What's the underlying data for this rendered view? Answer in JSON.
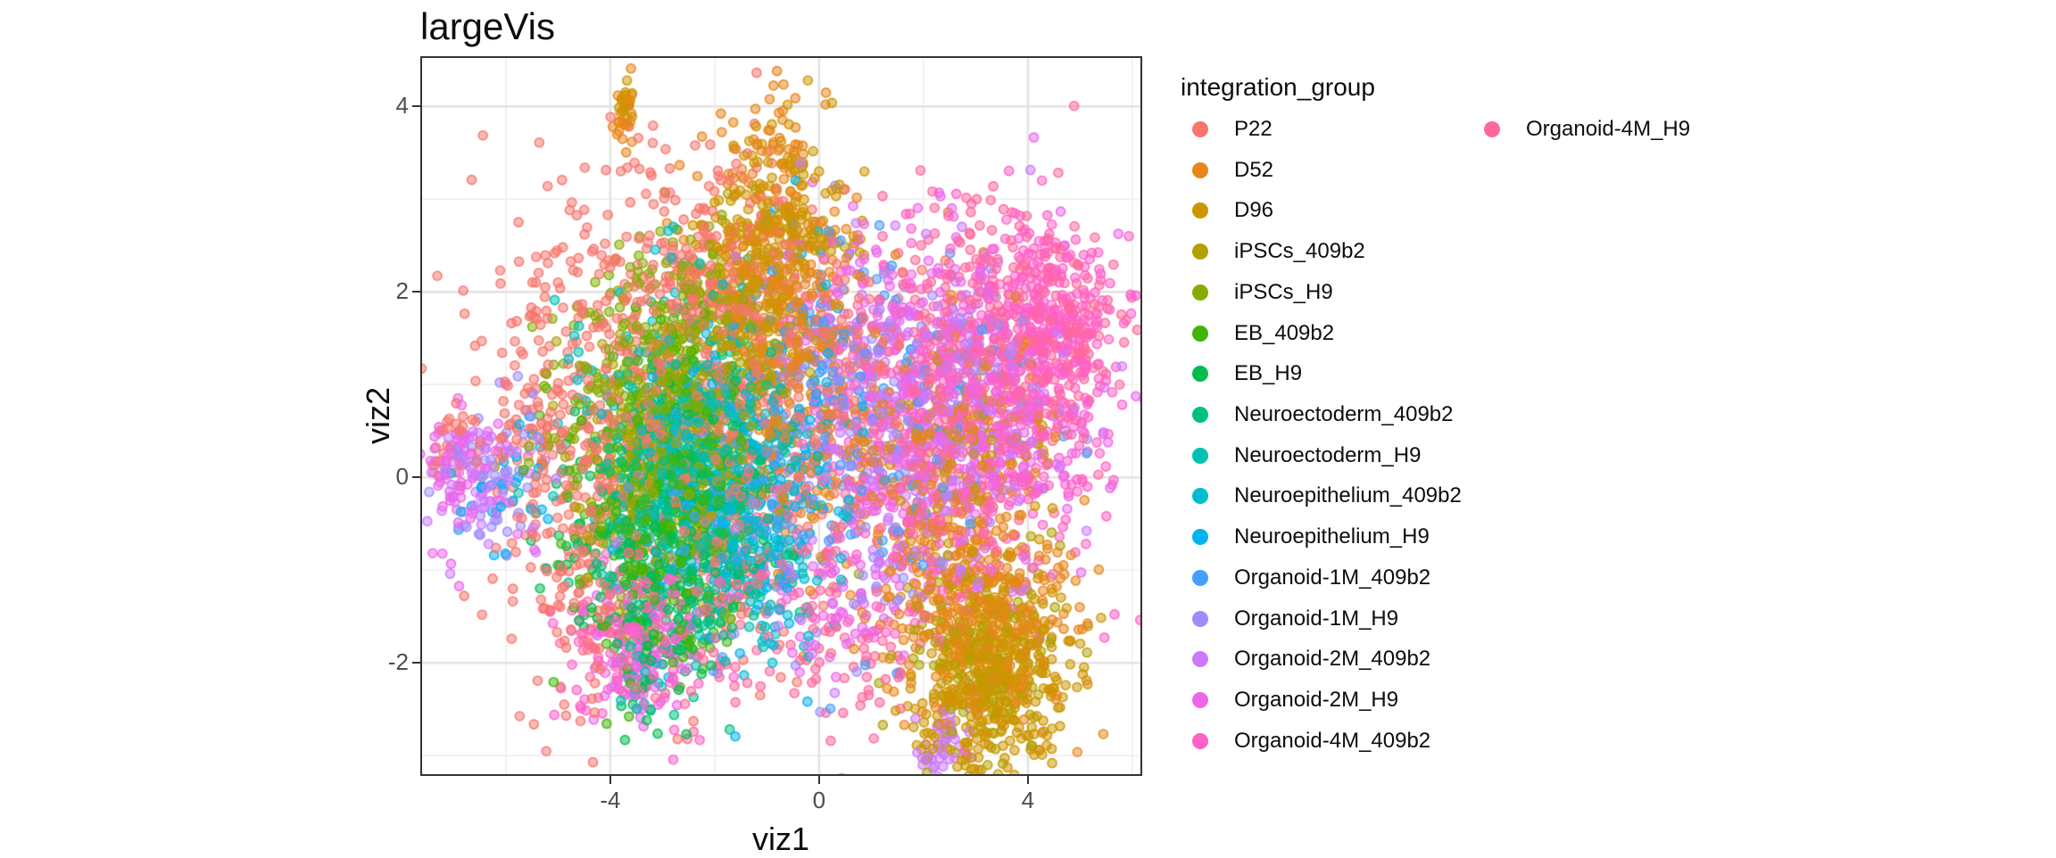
{
  "plot": {
    "title": "largeVis",
    "xlabel": "viz1",
    "ylabel": "viz2"
  },
  "legend": {
    "title": "integration_group",
    "rows_per_column": 16,
    "position": "right"
  },
  "style": {
    "background": "#ffffff",
    "panel_background": "#ffffff",
    "panel_border": "#343434",
    "grid_major": "#e3e3e3",
    "grid_minor": "#f0f0f0",
    "tick_label_color": "#4d4d4d",
    "text_color": "#0d0d0d"
  },
  "chart_data": {
    "type": "scatter",
    "title": "largeVis",
    "xlabel": "viz1",
    "ylabel": "viz2",
    "xlim": [
      -7.64,
      6.19
    ],
    "ylim": [
      -3.22,
      4.54
    ],
    "x_major_ticks": [
      -4,
      0,
      4
    ],
    "x_minor_ticks": [
      -6,
      -2,
      2,
      6
    ],
    "y_major_ticks": [
      4,
      2,
      0,
      -2
    ],
    "y_minor_ticks": [
      3,
      1,
      -1,
      -3
    ],
    "grid": true,
    "legend_position": "right",
    "point_radius_px": 5,
    "point_fill_alpha": 0.5,
    "point_stroke_alpha": 0.9,
    "series": [
      {
        "name": "P22",
        "color": "#F8766D",
        "clusters": [
          [
            -3.2,
            1.5,
            1.5,
            1.0,
            420
          ],
          [
            -1.2,
            0.4,
            1.0,
            1.2,
            220
          ],
          [
            -4.9,
            0.2,
            0.9,
            0.8,
            150
          ],
          [
            -4.2,
            -1.2,
            0.8,
            0.7,
            110
          ],
          [
            -7.0,
            0.35,
            0.35,
            0.25,
            28
          ],
          [
            -1.8,
            2.6,
            0.8,
            0.5,
            90
          ],
          [
            0.9,
            1.2,
            0.7,
            0.6,
            60
          ]
        ]
      },
      {
        "name": "D52",
        "color": "#E7861B",
        "clusters": [
          [
            -0.9,
            1.9,
            0.8,
            0.9,
            260
          ],
          [
            3.2,
            -1.6,
            0.85,
            0.6,
            340
          ],
          [
            -0.3,
            0.5,
            0.9,
            0.9,
            130
          ],
          [
            -3.76,
            3.9,
            0.1,
            0.2,
            24
          ],
          [
            -0.7,
            3.6,
            0.3,
            0.3,
            28
          ],
          [
            2.6,
            0.3,
            1.0,
            0.8,
            130
          ],
          [
            2.4,
            -0.6,
            0.6,
            0.5,
            70
          ]
        ]
      },
      {
        "name": "D96",
        "color": "#CD9600",
        "clusters": [
          [
            -0.7,
            2.7,
            0.65,
            0.55,
            220
          ],
          [
            3.5,
            -2.1,
            0.7,
            0.5,
            300
          ],
          [
            -3.7,
            4.05,
            0.08,
            0.15,
            16
          ],
          [
            2.7,
            -2.7,
            0.5,
            0.3,
            60
          ],
          [
            -1.3,
            2.0,
            0.5,
            0.5,
            70
          ],
          [
            2.8,
            0.2,
            0.9,
            0.7,
            90
          ]
        ]
      },
      {
        "name": "iPSCs_409b2",
        "color": "#B0A100",
        "clusters": [
          [
            -3.0,
            0.3,
            0.9,
            0.8,
            200
          ],
          [
            3.1,
            -2.0,
            0.8,
            0.6,
            160
          ],
          [
            -1.4,
            1.6,
            0.6,
            0.7,
            70
          ]
        ]
      },
      {
        "name": "iPSCs_H9",
        "color": "#85AD00",
        "clusters": [
          [
            -3.3,
            0.7,
            0.9,
            0.8,
            250
          ],
          [
            -2.5,
            1.7,
            0.6,
            0.5,
            80
          ]
        ]
      },
      {
        "name": "EB_409b2",
        "color": "#3FB607",
        "clusters": [
          [
            -3.1,
            -0.5,
            0.9,
            0.8,
            250
          ],
          [
            -2.4,
            0.5,
            0.6,
            0.6,
            100
          ]
        ]
      },
      {
        "name": "EB_H9",
        "color": "#00BC51",
        "clusters": [
          [
            -3.3,
            -1.0,
            0.8,
            0.7,
            220
          ],
          [
            -2.1,
            -0.2,
            0.7,
            0.6,
            100
          ]
        ]
      },
      {
        "name": "Neuroectoderm_409b2",
        "color": "#00C087",
        "clusters": [
          [
            -2.7,
            -0.4,
            0.9,
            0.8,
            190
          ],
          [
            -1.6,
            0.5,
            0.8,
            0.7,
            90
          ]
        ]
      },
      {
        "name": "Neuroectoderm_H9",
        "color": "#00C0B2",
        "clusters": [
          [
            -2.9,
            0.4,
            1.0,
            0.8,
            160
          ],
          [
            -1.7,
            -0.7,
            0.7,
            0.6,
            80
          ],
          [
            -3.5,
            -2.2,
            0.3,
            0.25,
            22
          ]
        ]
      },
      {
        "name": "Neuroepithelium_409b2",
        "color": "#00BCD0",
        "clusters": [
          [
            -2.2,
            0.3,
            1.0,
            0.9,
            150
          ],
          [
            -0.9,
            -0.7,
            0.7,
            0.6,
            70
          ]
        ]
      },
      {
        "name": "Neuroepithelium_H9",
        "color": "#00B3F2",
        "clusters": [
          [
            -1.8,
            -0.2,
            1.0,
            0.9,
            140
          ],
          [
            -0.5,
            0.9,
            0.7,
            0.7,
            70
          ],
          [
            -6.0,
            -0.2,
            0.5,
            0.4,
            28
          ]
        ]
      },
      {
        "name": "Organoid-1M_409b2",
        "color": "#459FFF",
        "clusters": [
          [
            -1.1,
            0.1,
            1.1,
            1.0,
            140
          ],
          [
            0.4,
            1.2,
            0.8,
            0.7,
            60
          ],
          [
            2.4,
            0.4,
            0.9,
            0.8,
            50
          ]
        ]
      },
      {
        "name": "Organoid-1M_H9",
        "color": "#9C8DFF",
        "clusters": [
          [
            0.4,
            0.1,
            1.1,
            1.0,
            140
          ],
          [
            2.2,
            0.9,
            1.0,
            0.8,
            90
          ],
          [
            -6.2,
            0.15,
            0.5,
            0.35,
            45
          ]
        ]
      },
      {
        "name": "Organoid-2M_409b2",
        "color": "#CC79FF",
        "clusters": [
          [
            1.6,
            0.4,
            1.1,
            1.0,
            170
          ],
          [
            -6.4,
            0.0,
            0.55,
            0.4,
            60
          ],
          [
            2.35,
            -2.85,
            0.3,
            0.2,
            40
          ],
          [
            3.1,
            0.9,
            1.0,
            0.8,
            90
          ]
        ]
      },
      {
        "name": "Organoid-2M_H9",
        "color": "#EC67E9",
        "clusters": [
          [
            2.8,
            0.7,
            1.2,
            1.0,
            270
          ],
          [
            -6.6,
            -0.05,
            0.5,
            0.4,
            55
          ],
          [
            0.2,
            -1.4,
            0.9,
            0.5,
            60
          ],
          [
            1.2,
            1.8,
            0.7,
            0.5,
            70
          ],
          [
            -3.5,
            -1.9,
            0.6,
            0.4,
            70
          ],
          [
            -7.0,
            0.3,
            0.3,
            0.25,
            25
          ]
        ]
      },
      {
        "name": "Organoid-4M_409b2",
        "color": "#FF61C8",
        "clusters": [
          [
            3.8,
            0.9,
            1.1,
            0.9,
            400
          ],
          [
            4.7,
            1.8,
            0.6,
            0.4,
            140
          ],
          [
            2.1,
            -0.4,
            0.9,
            0.8,
            110
          ],
          [
            1.0,
            0.9,
            0.8,
            0.8,
            90
          ],
          [
            -3.4,
            -1.7,
            0.7,
            0.5,
            110
          ]
        ]
      },
      {
        "name": "Organoid-4M_H9",
        "color": "#FF689D",
        "clusters": [
          [
            3.3,
            1.5,
            1.1,
            0.8,
            300
          ],
          [
            -3.0,
            -1.6,
            0.9,
            0.5,
            90
          ],
          [
            0.8,
            -1.9,
            0.7,
            0.45,
            45
          ],
          [
            4.7,
            1.6,
            0.5,
            0.4,
            90
          ],
          [
            -0.5,
            -0.9,
            0.9,
            0.7,
            70
          ],
          [
            2.2,
            0.6,
            1.0,
            0.8,
            90
          ]
        ]
      }
    ]
  }
}
